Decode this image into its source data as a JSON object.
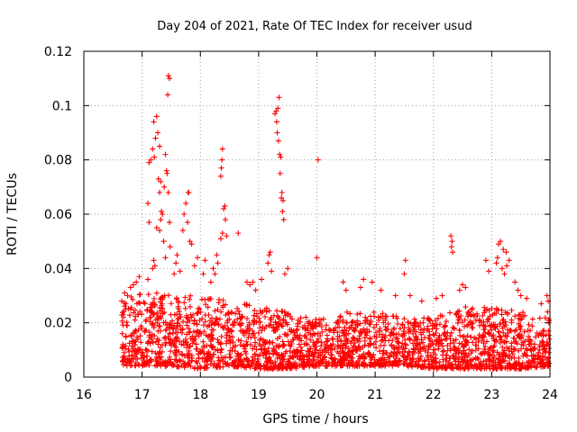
{
  "chart_data": {
    "type": "scatter",
    "title": "Day 204 of 2021, Rate Of TEC Index for receiver usud",
    "xlabel": "GPS time / hours",
    "ylabel": "ROTI / TECUs",
    "xlim": [
      16,
      24
    ],
    "ylim": [
      0,
      0.12
    ],
    "xticks": [
      16,
      17,
      18,
      19,
      20,
      21,
      22,
      23,
      24
    ],
    "yticks": [
      0,
      0.02,
      0.04,
      0.06,
      0.08,
      0.1,
      0.12
    ],
    "xtick_labels": [
      "16",
      "17",
      "18",
      "19",
      "20",
      "21",
      "22",
      "23",
      "24"
    ],
    "ytick_labels": [
      "0",
      "0.02",
      "0.04",
      "0.06",
      "0.08",
      "0.1",
      "0.12"
    ],
    "grid": true,
    "marker": "+",
    "color": "#ff0000",
    "series": [
      {
        "name": "ROTI",
        "points": [
          [
            17.45,
            0.111
          ],
          [
            17.47,
            0.11
          ],
          [
            17.44,
            0.104
          ],
          [
            19.35,
            0.103
          ],
          [
            19.3,
            0.098
          ],
          [
            19.28,
            0.097
          ],
          [
            19.33,
            0.099
          ],
          [
            19.31,
            0.094
          ],
          [
            19.32,
            0.09
          ],
          [
            19.34,
            0.087
          ],
          [
            19.36,
            0.082
          ],
          [
            19.38,
            0.081
          ],
          [
            19.37,
            0.075
          ],
          [
            19.4,
            0.068
          ],
          [
            19.39,
            0.066
          ],
          [
            19.42,
            0.065
          ],
          [
            19.41,
            0.061
          ],
          [
            19.43,
            0.058
          ],
          [
            17.25,
            0.096
          ],
          [
            17.2,
            0.094
          ],
          [
            17.27,
            0.09
          ],
          [
            17.23,
            0.088
          ],
          [
            17.3,
            0.085
          ],
          [
            17.18,
            0.084
          ],
          [
            17.15,
            0.08
          ],
          [
            17.12,
            0.079
          ],
          [
            17.21,
            0.081
          ],
          [
            17.4,
            0.082
          ],
          [
            17.42,
            0.076
          ],
          [
            17.43,
            0.075
          ],
          [
            17.38,
            0.07
          ],
          [
            17.28,
            0.073
          ],
          [
            17.32,
            0.072
          ],
          [
            17.3,
            0.068
          ],
          [
            17.45,
            0.068
          ],
          [
            17.1,
            0.064
          ],
          [
            17.33,
            0.061
          ],
          [
            17.35,
            0.06
          ],
          [
            17.32,
            0.058
          ],
          [
            17.12,
            0.057
          ],
          [
            17.47,
            0.057
          ],
          [
            17.25,
            0.055
          ],
          [
            17.3,
            0.054
          ],
          [
            17.37,
            0.05
          ],
          [
            17.48,
            0.048
          ],
          [
            17.8,
            0.068
          ],
          [
            17.79,
            0.068
          ],
          [
            17.75,
            0.064
          ],
          [
            17.72,
            0.06
          ],
          [
            17.78,
            0.057
          ],
          [
            17.7,
            0.054
          ],
          [
            17.82,
            0.05
          ],
          [
            17.85,
            0.049
          ],
          [
            18.38,
            0.084
          ],
          [
            18.37,
            0.08
          ],
          [
            18.36,
            0.077
          ],
          [
            18.35,
            0.074
          ],
          [
            18.42,
            0.063
          ],
          [
            18.4,
            0.062
          ],
          [
            18.43,
            0.058
          ],
          [
            18.38,
            0.053
          ],
          [
            18.45,
            0.052
          ],
          [
            18.35,
            0.051
          ],
          [
            18.65,
            0.053
          ],
          [
            20.02,
            0.08
          ],
          [
            20.0,
            0.044
          ],
          [
            22.3,
            0.052
          ],
          [
            22.32,
            0.05
          ],
          [
            22.31,
            0.048
          ],
          [
            22.33,
            0.046
          ],
          [
            23.15,
            0.05
          ],
          [
            23.12,
            0.049
          ],
          [
            23.1,
            0.044
          ],
          [
            23.08,
            0.042
          ],
          [
            23.2,
            0.047
          ],
          [
            23.25,
            0.046
          ],
          [
            23.18,
            0.04
          ],
          [
            23.22,
            0.038
          ],
          [
            23.26,
            0.041
          ],
          [
            23.3,
            0.043
          ],
          [
            21.52,
            0.043
          ],
          [
            21.5,
            0.038
          ],
          [
            19.5,
            0.04
          ],
          [
            19.45,
            0.038
          ],
          [
            19.2,
            0.046
          ],
          [
            19.18,
            0.045
          ],
          [
            19.16,
            0.042
          ],
          [
            19.22,
            0.039
          ],
          [
            19.05,
            0.036
          ],
          [
            18.9,
            0.035
          ],
          [
            18.95,
            0.032
          ],
          [
            18.8,
            0.035
          ],
          [
            18.85,
            0.034
          ],
          [
            18.28,
            0.045
          ],
          [
            18.3,
            0.042
          ],
          [
            18.25,
            0.038
          ],
          [
            18.22,
            0.04
          ],
          [
            18.18,
            0.035
          ],
          [
            18.08,
            0.043
          ],
          [
            18.05,
            0.038
          ],
          [
            17.95,
            0.044
          ],
          [
            17.9,
            0.041
          ],
          [
            17.6,
            0.045
          ],
          [
            17.58,
            0.042
          ],
          [
            17.55,
            0.038
          ],
          [
            17.65,
            0.039
          ],
          [
            17.2,
            0.043
          ],
          [
            17.18,
            0.04
          ],
          [
            17.22,
            0.041
          ],
          [
            17.4,
            0.044
          ],
          [
            17.1,
            0.036
          ],
          [
            16.95,
            0.037
          ],
          [
            16.9,
            0.035
          ],
          [
            16.85,
            0.034
          ],
          [
            16.8,
            0.033
          ],
          [
            16.75,
            0.03
          ],
          [
            16.7,
            0.031
          ],
          [
            16.65,
            0.028
          ],
          [
            16.72,
            0.027
          ],
          [
            16.68,
            0.023
          ],
          [
            16.66,
            0.016
          ],
          [
            16.67,
            0.012
          ],
          [
            16.69,
            0.009
          ],
          [
            16.71,
            0.007
          ],
          [
            20.45,
            0.035
          ],
          [
            20.5,
            0.032
          ],
          [
            20.8,
            0.036
          ],
          [
            20.75,
            0.033
          ],
          [
            20.95,
            0.035
          ],
          [
            21.1,
            0.032
          ],
          [
            21.35,
            0.03
          ],
          [
            21.6,
            0.03
          ],
          [
            21.8,
            0.028
          ],
          [
            22.05,
            0.029
          ],
          [
            22.15,
            0.03
          ],
          [
            22.5,
            0.034
          ],
          [
            22.55,
            0.033
          ],
          [
            22.45,
            0.032
          ],
          [
            22.9,
            0.043
          ],
          [
            22.95,
            0.039
          ],
          [
            23.4,
            0.035
          ],
          [
            23.45,
            0.032
          ],
          [
            23.5,
            0.03
          ],
          [
            23.6,
            0.029
          ],
          [
            23.85,
            0.027
          ],
          [
            23.95,
            0.03
          ],
          [
            23.97,
            0.028
          ],
          [
            23.96,
            0.024
          ],
          [
            23.98,
            0.02
          ],
          [
            23.99,
            0.014
          ],
          [
            23.98,
            0.009
          ],
          [
            23.97,
            0.006
          ]
        ],
        "baseline_envelope": [
          [
            16.65,
            0.004,
            0.03
          ],
          [
            17.0,
            0.004,
            0.032
          ],
          [
            17.5,
            0.004,
            0.03
          ],
          [
            18.0,
            0.003,
            0.03
          ],
          [
            18.5,
            0.004,
            0.028
          ],
          [
            19.0,
            0.003,
            0.026
          ],
          [
            19.5,
            0.003,
            0.024
          ],
          [
            20.0,
            0.004,
            0.022
          ],
          [
            20.5,
            0.004,
            0.024
          ],
          [
            21.0,
            0.004,
            0.024
          ],
          [
            21.5,
            0.004,
            0.022
          ],
          [
            22.0,
            0.003,
            0.022
          ],
          [
            22.5,
            0.003,
            0.026
          ],
          [
            23.0,
            0.003,
            0.026
          ],
          [
            23.5,
            0.003,
            0.024
          ],
          [
            23.99,
            0.004,
            0.022
          ]
        ]
      }
    ]
  }
}
